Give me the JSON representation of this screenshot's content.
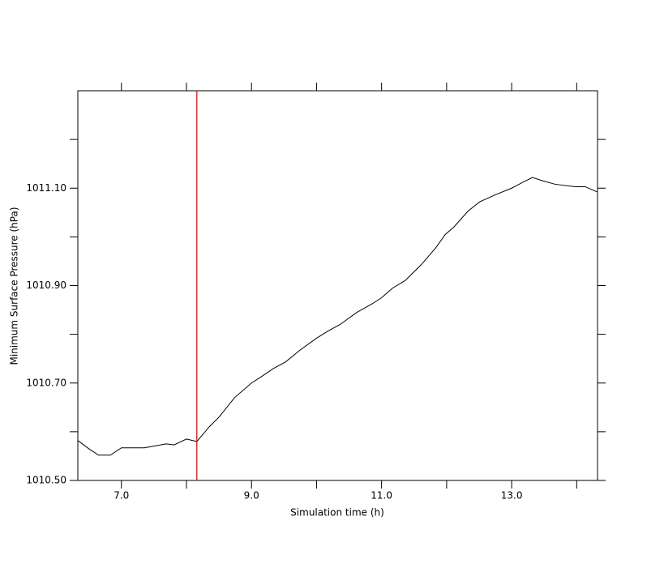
{
  "chart_data": {
    "type": "line",
    "xlabel": "Simulation time (h)",
    "ylabel": "Minimum Surface Pressure (hPa)",
    "xlim": [
      6.33,
      14.32
    ],
    "ylim": [
      1010.5,
      1011.3
    ],
    "xticks": [
      {
        "value": 7,
        "label": "7.0"
      },
      {
        "value": 9,
        "label": "9.0"
      },
      {
        "value": 11,
        "label": "11.0"
      },
      {
        "value": 13,
        "label": "13.0"
      }
    ],
    "xminorticks": [
      8,
      10,
      12,
      14
    ],
    "yticks": [
      {
        "value": 1010.5,
        "label": "1010.50"
      },
      {
        "value": 1010.7,
        "label": "1010.70"
      },
      {
        "value": 1010.9,
        "label": "1010.90"
      },
      {
        "value": 1011.1,
        "label": "1011.10"
      }
    ],
    "yminorticks": [
      1010.6,
      1010.8,
      1011.0,
      1011.2
    ],
    "vline": {
      "x": 8.16,
      "color": "#d00000"
    },
    "series": [
      {
        "color": "#000000",
        "x": [
          6.33,
          6.5,
          6.65,
          6.83,
          7.0,
          7.35,
          7.69,
          7.81,
          8.0,
          8.16,
          8.35,
          8.5,
          8.74,
          9.0,
          9.14,
          9.34,
          9.52,
          9.74,
          10.0,
          10.18,
          10.36,
          10.62,
          10.86,
          11.0,
          11.17,
          11.36,
          11.61,
          11.83,
          11.98,
          12.11,
          12.33,
          12.51,
          12.76,
          13.0,
          13.17,
          13.32,
          13.48,
          13.67,
          13.98,
          14.13,
          14.32
        ],
        "values": [
          1010.582,
          1010.565,
          1010.552,
          1010.552,
          1010.567,
          1010.567,
          1010.575,
          1010.573,
          1010.585,
          1010.58,
          1010.61,
          1010.63,
          1010.67,
          1010.7,
          1010.712,
          1010.73,
          1010.743,
          1010.767,
          1010.792,
          1010.807,
          1010.82,
          1010.845,
          1010.863,
          1010.875,
          1010.895,
          1010.91,
          1010.943,
          1010.977,
          1011.005,
          1011.02,
          1011.053,
          1011.072,
          1011.087,
          1011.1,
          1011.112,
          1011.122,
          1011.115,
          1011.108,
          1011.103,
          1011.103,
          1011.092
        ]
      }
    ]
  }
}
